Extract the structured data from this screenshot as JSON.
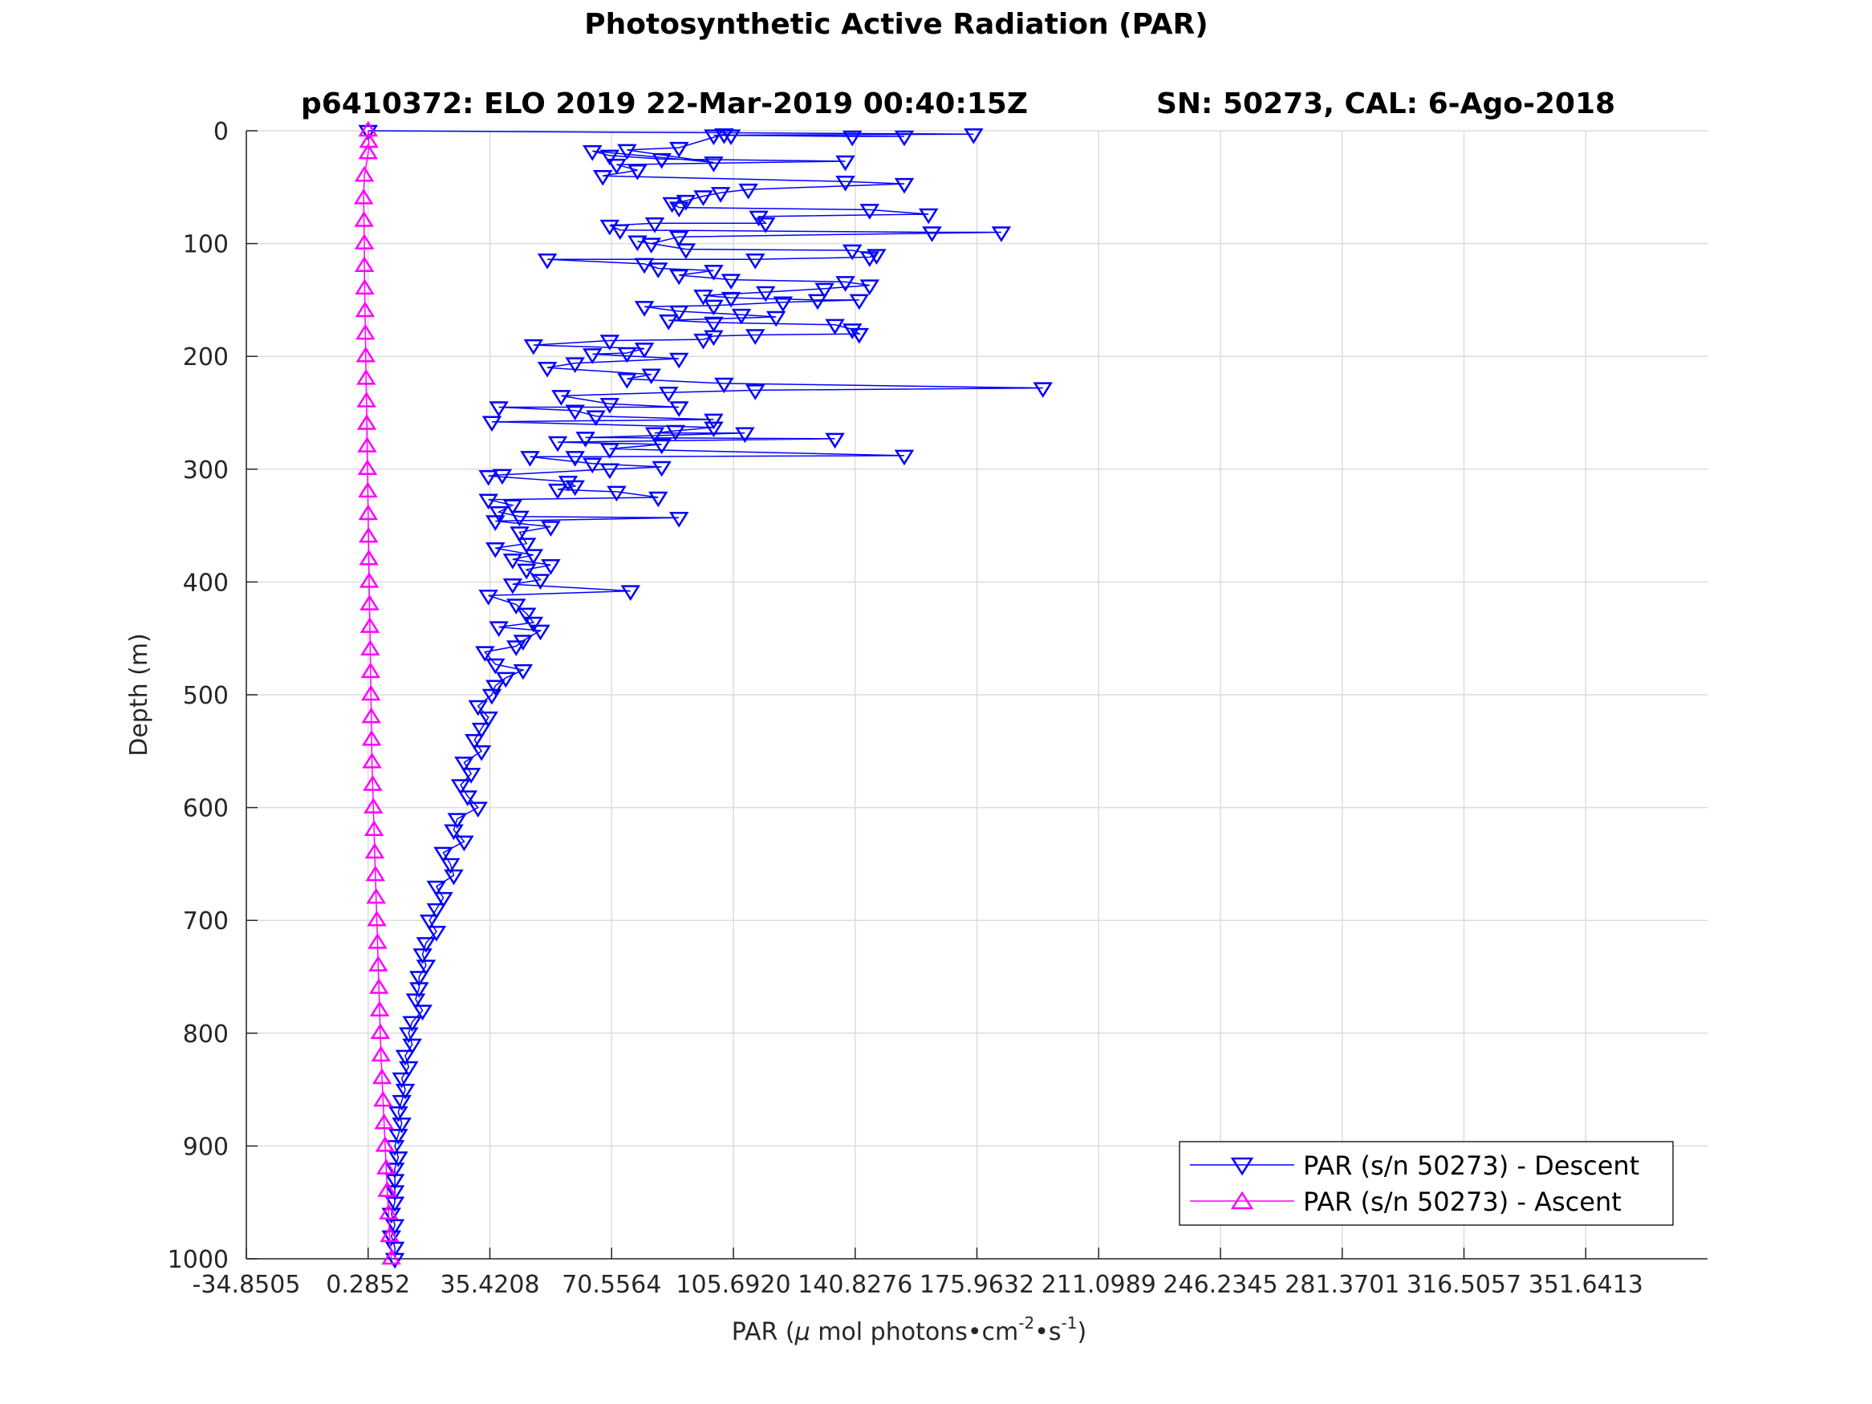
{
  "chart_data": {
    "type": "line",
    "title": "Photosynthetic Active Radiation (PAR)",
    "subtitle_left": "p6410372: ELO 2019 22-Mar-2019 00:40:15Z",
    "subtitle_right": "SN: 50273, CAL: 6-Ago-2018",
    "xlabel": {
      "prefix": "PAR (",
      "mu": "μ",
      "mid": " mol photons•cm",
      "exp1": "-2",
      "dot": "•s",
      "exp2": "-1",
      "suffix": ")"
    },
    "ylabel": "Depth (m)",
    "xlim": [
      -34.8505,
      386.7769
    ],
    "ylim": [
      0,
      1000
    ],
    "y_reversed": true,
    "grid": true,
    "legend_position": "bottom-right",
    "xticks": [
      -34.8505,
      0.2852,
      35.4208,
      70.5564,
      105.692,
      140.8276,
      175.9632,
      211.0989,
      246.2345,
      281.3701,
      316.5057,
      351.6413
    ],
    "xtick_labels": [
      "-34.8505",
      "0.2852",
      "35.4208",
      "70.5564",
      "105.6920",
      "140.8276",
      "175.9632",
      "211.0989",
      "246.2345",
      "281.3701",
      "316.5057",
      "351.6413"
    ],
    "yticks": [
      0,
      100,
      200,
      300,
      400,
      500,
      600,
      700,
      800,
      900,
      1000
    ],
    "ytick_labels": [
      "0",
      "100",
      "200",
      "300",
      "400",
      "500",
      "600",
      "700",
      "800",
      "900",
      "1000"
    ],
    "series": [
      {
        "name": "PAR (s/n 50273) - Descent",
        "color": "#0000ff",
        "marker": "triangle-down",
        "points": [
          [
            0.3,
            0
          ],
          [
            175,
            3
          ],
          [
            100,
            4
          ],
          [
            155,
            5
          ],
          [
            140,
            5
          ],
          [
            105,
            4
          ],
          [
            103,
            3
          ],
          [
            90,
            15
          ],
          [
            75,
            17
          ],
          [
            100,
            28
          ],
          [
            65,
            18
          ],
          [
            70,
            22
          ],
          [
            85,
            25
          ],
          [
            138,
            27
          ],
          [
            72,
            30
          ],
          [
            78,
            35
          ],
          [
            68,
            40
          ],
          [
            138,
            45
          ],
          [
            155,
            47
          ],
          [
            110,
            52
          ],
          [
            102,
            55
          ],
          [
            97,
            58
          ],
          [
            92,
            62
          ],
          [
            88,
            64
          ],
          [
            90,
            68
          ],
          [
            145,
            70
          ],
          [
            162,
            74
          ],
          [
            113,
            76
          ],
          [
            115,
            82
          ],
          [
            83,
            82
          ],
          [
            70,
            84
          ],
          [
            73,
            88
          ],
          [
            163,
            90
          ],
          [
            183,
            90
          ],
          [
            90,
            94
          ],
          [
            82,
            100
          ],
          [
            78,
            98
          ],
          [
            92,
            105
          ],
          [
            140,
            106
          ],
          [
            147,
            110
          ],
          [
            145,
            112
          ],
          [
            112,
            114
          ],
          [
            52,
            114
          ],
          [
            80,
            118
          ],
          [
            84,
            122
          ],
          [
            100,
            124
          ],
          [
            90,
            128
          ],
          [
            105,
            132
          ],
          [
            138,
            134
          ],
          [
            145,
            137
          ],
          [
            132,
            140
          ],
          [
            115,
            143
          ],
          [
            97,
            146
          ],
          [
            105,
            148
          ],
          [
            130,
            150
          ],
          [
            142,
            150
          ],
          [
            120,
            152
          ],
          [
            100,
            155
          ],
          [
            80,
            156
          ],
          [
            90,
            160
          ],
          [
            108,
            163
          ],
          [
            118,
            165
          ],
          [
            87,
            168
          ],
          [
            100,
            170
          ],
          [
            135,
            172
          ],
          [
            140,
            176
          ],
          [
            142,
            180
          ],
          [
            112,
            181
          ],
          [
            100,
            182
          ],
          [
            97,
            185
          ],
          [
            70,
            186
          ],
          [
            48,
            190
          ],
          [
            80,
            193
          ],
          [
            75,
            197
          ],
          [
            65,
            198
          ],
          [
            90,
            202
          ],
          [
            60,
            206
          ],
          [
            52,
            210
          ],
          [
            82,
            216
          ],
          [
            75,
            220
          ],
          [
            103,
            224
          ],
          [
            195,
            228
          ],
          [
            112,
            230
          ],
          [
            87,
            232
          ],
          [
            56,
            235
          ],
          [
            70,
            242
          ],
          [
            90,
            245
          ],
          [
            38,
            245
          ],
          [
            60,
            248
          ],
          [
            66,
            253
          ],
          [
            100,
            256
          ],
          [
            36,
            258
          ],
          [
            100,
            263
          ],
          [
            89,
            266
          ],
          [
            83,
            268
          ],
          [
            109,
            268
          ],
          [
            63,
            272
          ],
          [
            135,
            273
          ],
          [
            55,
            276
          ],
          [
            85,
            278
          ],
          [
            70,
            282
          ],
          [
            155,
            288
          ],
          [
            60,
            289
          ],
          [
            47,
            289
          ],
          [
            65,
            295
          ],
          [
            85,
            298
          ],
          [
            70,
            300
          ],
          [
            39,
            305
          ],
          [
            35,
            306
          ],
          [
            58,
            311
          ],
          [
            60,
            315
          ],
          [
            55,
            318
          ],
          [
            72,
            320
          ],
          [
            84,
            325
          ],
          [
            35,
            327
          ],
          [
            42,
            332
          ],
          [
            38,
            338
          ],
          [
            44,
            342
          ],
          [
            90,
            343
          ],
          [
            37,
            346
          ],
          [
            53,
            351
          ],
          [
            44,
            356
          ],
          [
            46,
            366
          ],
          [
            37,
            370
          ],
          [
            48,
            376
          ],
          [
            42,
            380
          ],
          [
            53,
            385
          ],
          [
            46,
            389
          ],
          [
            50,
            398
          ],
          [
            42,
            402
          ],
          [
            76,
            408
          ],
          [
            35,
            412
          ],
          [
            43,
            420
          ],
          [
            46,
            428
          ],
          [
            48,
            436
          ],
          [
            38,
            440
          ],
          [
            50,
            443
          ],
          [
            45,
            452
          ],
          [
            43,
            457
          ],
          [
            34,
            462
          ],
          [
            37,
            473
          ],
          [
            45,
            478
          ],
          [
            40,
            485
          ],
          [
            37,
            492
          ],
          [
            36,
            500
          ],
          [
            32,
            510
          ],
          [
            35,
            520
          ],
          [
            33,
            530
          ],
          [
            31,
            540
          ],
          [
            33,
            550
          ],
          [
            28,
            560
          ],
          [
            30,
            570
          ],
          [
            27,
            580
          ],
          [
            29,
            590
          ],
          [
            32,
            600
          ],
          [
            26,
            610
          ],
          [
            25,
            620
          ],
          [
            28,
            630
          ],
          [
            22,
            640
          ],
          [
            24,
            650
          ],
          [
            25,
            660
          ],
          [
            20,
            670
          ],
          [
            22,
            680
          ],
          [
            20,
            690
          ],
          [
            18,
            700
          ],
          [
            20,
            710
          ],
          [
            17,
            720
          ],
          [
            16,
            730
          ],
          [
            17,
            740
          ],
          [
            15,
            750
          ],
          [
            15,
            760
          ],
          [
            14,
            770
          ],
          [
            16,
            780
          ],
          [
            13,
            790
          ],
          [
            12,
            800
          ],
          [
            13,
            810
          ],
          [
            11,
            820
          ],
          [
            12,
            830
          ],
          [
            10,
            840
          ],
          [
            11,
            850
          ],
          [
            10,
            860
          ],
          [
            9,
            870
          ],
          [
            10,
            880
          ],
          [
            9,
            890
          ],
          [
            8,
            900
          ],
          [
            9,
            910
          ],
          [
            8,
            920
          ],
          [
            8,
            930
          ],
          [
            8,
            940
          ],
          [
            8,
            950
          ],
          [
            7,
            960
          ],
          [
            8,
            970
          ],
          [
            7,
            980
          ],
          [
            8,
            990
          ],
          [
            8,
            1000
          ]
        ]
      },
      {
        "name": "PAR (s/n 50273) - Ascent",
        "color": "#ff00ff",
        "marker": "triangle-up",
        "points": [
          [
            7,
            1000
          ],
          [
            6.5,
            980
          ],
          [
            6.2,
            960
          ],
          [
            5.8,
            940
          ],
          [
            5.5,
            920
          ],
          [
            5.2,
            900
          ],
          [
            4.9,
            880
          ],
          [
            4.6,
            860
          ],
          [
            4.3,
            840
          ],
          [
            4.0,
            820
          ],
          [
            3.8,
            800
          ],
          [
            3.6,
            780
          ],
          [
            3.4,
            760
          ],
          [
            3.2,
            740
          ],
          [
            3.0,
            720
          ],
          [
            2.8,
            700
          ],
          [
            2.6,
            680
          ],
          [
            2.4,
            660
          ],
          [
            2.2,
            640
          ],
          [
            2.0,
            620
          ],
          [
            1.8,
            600
          ],
          [
            1.6,
            580
          ],
          [
            1.4,
            560
          ],
          [
            1.3,
            540
          ],
          [
            1.2,
            520
          ],
          [
            1.1,
            500
          ],
          [
            1.0,
            480
          ],
          [
            0.9,
            460
          ],
          [
            0.8,
            440
          ],
          [
            0.7,
            420
          ],
          [
            0.6,
            400
          ],
          [
            0.5,
            380
          ],
          [
            0.4,
            360
          ],
          [
            0.3,
            340
          ],
          [
            0.2,
            320
          ],
          [
            0.1,
            300
          ],
          [
            0.0,
            280
          ],
          [
            -0.1,
            260
          ],
          [
            -0.2,
            240
          ],
          [
            -0.3,
            220
          ],
          [
            -0.4,
            200
          ],
          [
            -0.5,
            180
          ],
          [
            -0.6,
            160
          ],
          [
            -0.7,
            140
          ],
          [
            -0.8,
            120
          ],
          [
            -0.8,
            100
          ],
          [
            -0.9,
            80
          ],
          [
            -1.0,
            60
          ],
          [
            -0.8,
            40
          ],
          [
            0.3,
            20
          ],
          [
            0.5,
            10
          ],
          [
            0.3,
            0
          ]
        ]
      }
    ]
  }
}
